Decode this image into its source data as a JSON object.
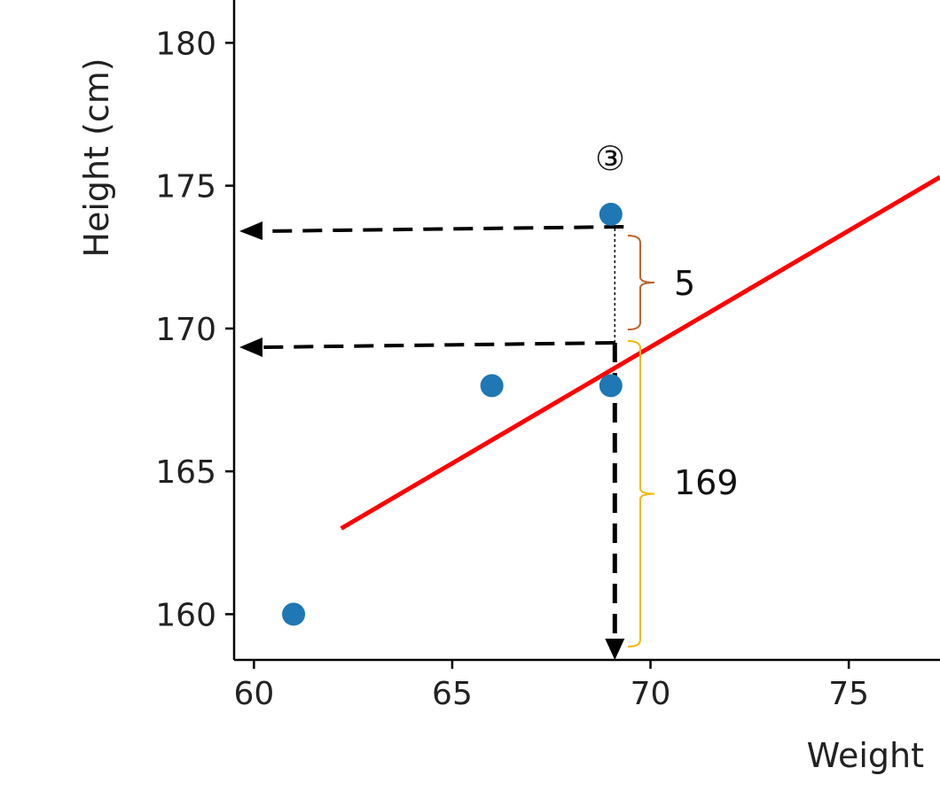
{
  "chart_data": {
    "type": "scatter",
    "xlabel": "Weight",
    "ylabel": "Height (cm)",
    "xlim": [
      59.5,
      77.3
    ],
    "ylim": [
      158.4,
      181.5
    ],
    "x_ticks": [
      60,
      65,
      70,
      75
    ],
    "y_ticks": [
      160,
      165,
      170,
      175,
      180
    ],
    "grid": false,
    "series": [
      {
        "values": [
          {
            "x": 61,
            "y": 160
          },
          {
            "x": 66,
            "y": 168
          },
          {
            "x": 69,
            "y": 168
          },
          {
            "x": 69,
            "y": 174
          }
        ],
        "color": "#1f77b4"
      }
    ],
    "fit_line": {
      "x": [
        62.2,
        77.3
      ],
      "y": [
        163.0,
        175.3
      ],
      "color": "#ff0000"
    },
    "annotations": {
      "marker": "③",
      "residual_label": "5",
      "predicted_label": "169",
      "target_x": 69.1,
      "observed_y": 173.5,
      "predicted_y": 169.5,
      "residual_brace_color": "#c0622b",
      "predicted_brace_color": "#f5b800"
    }
  }
}
